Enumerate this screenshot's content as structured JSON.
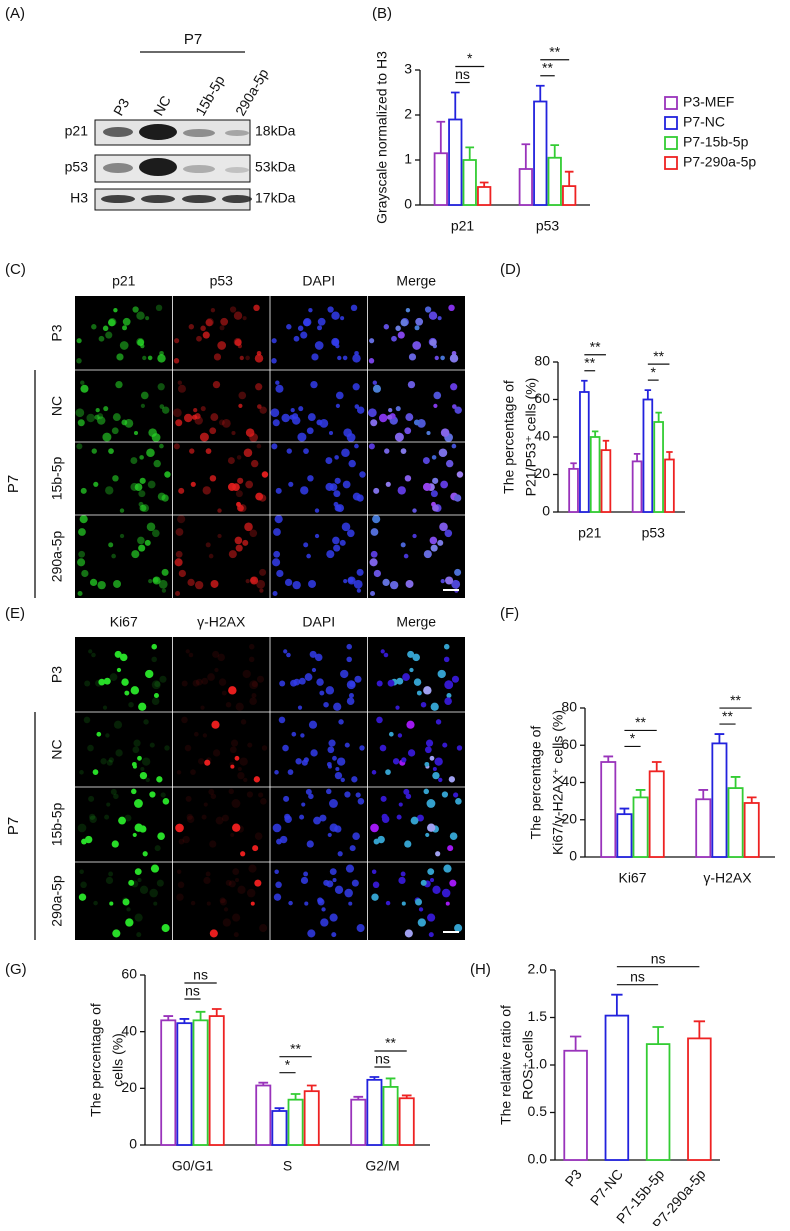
{
  "panel_labels": [
    "(A)",
    "(B)",
    "(C)",
    "(D)",
    "(E)",
    "(F)",
    "(G)",
    "(H)"
  ],
  "blot": {
    "group": "P7",
    "lanes": [
      "P3",
      "NC",
      "15b-5p",
      "290a-5p"
    ],
    "rows": [
      "p21",
      "p53",
      "H3"
    ],
    "sizes": [
      "18kDa",
      "53kDa",
      "17kDa"
    ]
  },
  "image_c": {
    "columns": [
      {
        "text": "p21",
        "color": "#22cc22"
      },
      {
        "text": "p53",
        "color": "#ee2222"
      },
      {
        "text": "DAPI",
        "color": "#2222dd"
      },
      {
        "text": "Merge",
        "color": "#111111"
      }
    ],
    "rows": [
      "P3",
      "NC",
      "15b-5p",
      "290a-5p"
    ],
    "group": "P7"
  },
  "image_e": {
    "columns": [
      {
        "text": "Ki67",
        "color": "#22cc22"
      },
      {
        "text": "γ-H2AX",
        "color": "#ee2222"
      },
      {
        "text": "DAPI",
        "color": "#2222dd"
      },
      {
        "text": "Merge",
        "color": "#111111"
      }
    ],
    "rows": [
      "P3",
      "NC",
      "15b-5p",
      "290a-5p"
    ],
    "group": "P7"
  },
  "chart_data": [
    {
      "type": "grouped_bar",
      "categories": [
        "p21",
        "p53"
      ],
      "ylabel": [
        "Grayscale normalized to H3"
      ],
      "ylim": [
        0,
        3
      ],
      "yticks": [
        0,
        1,
        2,
        3
      ],
      "legend": "right",
      "series": [
        {
          "name": "P3-MEF",
          "color": "#9933bb",
          "values": [
            1.15,
            0.8
          ],
          "errors": [
            0.7,
            0.55
          ]
        },
        {
          "name": "P7-NC",
          "color": "#2222dd",
          "values": [
            1.9,
            2.3
          ],
          "errors": [
            0.6,
            0.35
          ]
        },
        {
          "name": "P7-15b-5p",
          "color": "#33cc33",
          "values": [
            1.0,
            1.05
          ],
          "errors": [
            0.28,
            0.28
          ]
        },
        {
          "name": "P7-290a-5p",
          "color": "#ee2222",
          "values": [
            0.4,
            0.42
          ],
          "errors": [
            0.1,
            0.32
          ]
        }
      ],
      "annotations": [
        {
          "label": "ns",
          "category": "p21",
          "between": [
            "P7-NC",
            "P7-15b-5p"
          ]
        },
        {
          "label": "*",
          "category": "p21",
          "between": [
            "P7-NC",
            "P7-290a-5p"
          ]
        },
        {
          "label": "**",
          "category": "p53",
          "between": [
            "P7-NC",
            "P7-15b-5p"
          ]
        },
        {
          "label": "**",
          "category": "p53",
          "between": [
            "P7-NC",
            "P7-290a-5p"
          ]
        }
      ]
    },
    {
      "type": "grouped_bar",
      "categories": [
        "p21",
        "p53"
      ],
      "ylabel": [
        "The percentage of",
        "P21/P53⁺ cells (%)"
      ],
      "ylim": [
        0,
        80
      ],
      "yticks": [
        0,
        20,
        40,
        60,
        80
      ],
      "series": [
        {
          "name": "P3-MEF",
          "color": "#9933bb",
          "values": [
            23,
            27
          ],
          "errors": [
            3,
            4
          ]
        },
        {
          "name": "P7-NC",
          "color": "#2222dd",
          "values": [
            64,
            60
          ],
          "errors": [
            6,
            5
          ]
        },
        {
          "name": "P7-15b-5p",
          "color": "#33cc33",
          "values": [
            40,
            48
          ],
          "errors": [
            3,
            5
          ]
        },
        {
          "name": "P7-290a-5p",
          "color": "#ee2222",
          "values": [
            33,
            28
          ],
          "errors": [
            5,
            4
          ]
        }
      ],
      "annotations": [
        {
          "label": "**",
          "category": "p21",
          "between": [
            "P7-NC",
            "P7-15b-5p"
          ]
        },
        {
          "label": "**",
          "category": "p21",
          "between": [
            "P7-NC",
            "P7-290a-5p"
          ]
        },
        {
          "label": "*",
          "category": "p53",
          "between": [
            "P7-NC",
            "P7-15b-5p"
          ]
        },
        {
          "label": "**",
          "category": "p53",
          "between": [
            "P7-NC",
            "P7-290a-5p"
          ]
        }
      ]
    },
    {
      "type": "grouped_bar",
      "categories": [
        "Ki67",
        "γ-H2AX"
      ],
      "ylabel": [
        "The percentage of",
        "Ki67/γ-H2AX⁺ cells (%)"
      ],
      "ylim": [
        0,
        80
      ],
      "yticks": [
        0,
        20,
        40,
        60,
        80
      ],
      "series": [
        {
          "name": "P3-MEF",
          "color": "#9933bb",
          "values": [
            51,
            31
          ],
          "errors": [
            3,
            5
          ]
        },
        {
          "name": "P7-NC",
          "color": "#2222dd",
          "values": [
            23,
            61
          ],
          "errors": [
            3,
            5
          ]
        },
        {
          "name": "P7-15b-5p",
          "color": "#33cc33",
          "values": [
            32,
            37
          ],
          "errors": [
            4,
            6
          ]
        },
        {
          "name": "P7-290a-5p",
          "color": "#ee2222",
          "values": [
            46,
            29
          ],
          "errors": [
            5,
            3
          ]
        }
      ],
      "annotations": [
        {
          "label": "*",
          "category": "Ki67",
          "between": [
            "P7-NC",
            "P7-15b-5p"
          ]
        },
        {
          "label": "**",
          "category": "Ki67",
          "between": [
            "P7-NC",
            "P7-290a-5p"
          ]
        },
        {
          "label": "**",
          "category": "γ-H2AX",
          "between": [
            "P7-NC",
            "P7-15b-5p"
          ]
        },
        {
          "label": "**",
          "category": "γ-H2AX",
          "between": [
            "P7-NC",
            "P7-290a-5p"
          ]
        }
      ]
    },
    {
      "type": "grouped_bar",
      "categories": [
        "G0/G1",
        "S",
        "G2/M"
      ],
      "ylabel": [
        "The percentage of",
        "cells (%)"
      ],
      "ylim": [
        0,
        60
      ],
      "yticks": [
        0,
        20,
        40,
        60
      ],
      "series": [
        {
          "name": "P3-MEF",
          "color": "#9933bb",
          "values": [
            44,
            21,
            16
          ],
          "errors": [
            1.5,
            1,
            1
          ]
        },
        {
          "name": "P7-NC",
          "color": "#2222dd",
          "values": [
            43,
            12,
            23
          ],
          "errors": [
            1.5,
            1,
            1
          ]
        },
        {
          "name": "P7-15b-5p",
          "color": "#33cc33",
          "values": [
            44,
            16,
            20.5
          ],
          "errors": [
            3,
            2,
            3
          ]
        },
        {
          "name": "P7-290a-5p",
          "color": "#ee2222",
          "values": [
            45.5,
            19,
            16.5
          ],
          "errors": [
            2.5,
            2,
            1
          ]
        }
      ],
      "annotations": [
        {
          "label": "ns",
          "category": "G0/G1",
          "between": [
            "P7-NC",
            "P7-15b-5p"
          ]
        },
        {
          "label": "ns",
          "category": "G0/G1",
          "between": [
            "P7-NC",
            "P7-290a-5p"
          ]
        },
        {
          "label": "*",
          "category": "S",
          "between": [
            "P7-NC",
            "P7-15b-5p"
          ]
        },
        {
          "label": "**",
          "category": "S",
          "between": [
            "P7-NC",
            "P7-290a-5p"
          ]
        },
        {
          "label": "ns",
          "category": "G2/M",
          "between": [
            "P7-NC",
            "P7-15b-5p"
          ]
        },
        {
          "label": "**",
          "category": "G2/M",
          "between": [
            "P7-NC",
            "P7-290a-5p"
          ]
        }
      ]
    },
    {
      "type": "bar",
      "categories": [
        "P3",
        "P7-NC",
        "P7-15b-5p",
        "P7-290a-5p"
      ],
      "ylabel": [
        "The relative ratio of",
        "ROS⁺ cells"
      ],
      "ylim": [
        0,
        2.0
      ],
      "yticks": [
        {
          "value": 0,
          "label": "0.0"
        },
        0.5,
        {
          "value": 1,
          "label": "1.0"
        },
        1.5,
        {
          "value": 2,
          "label": "2.0"
        }
      ],
      "values": [
        1.15,
        1.52,
        1.22,
        1.28
      ],
      "errors": [
        0.15,
        0.22,
        0.18,
        0.18
      ],
      "colors": [
        "#9933bb",
        "#2222dd",
        "#33cc33",
        "#ee2222"
      ],
      "annotations": [
        {
          "label": "ns",
          "between": [
            "P7-NC",
            "P7-15b-5p"
          ]
        },
        {
          "label": "ns",
          "between": [
            "P7-NC",
            "P7-290a-5p"
          ]
        }
      ]
    }
  ]
}
